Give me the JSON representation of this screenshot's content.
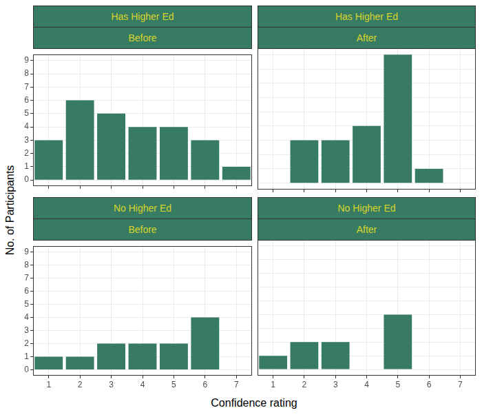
{
  "chart_data": {
    "type": "bar",
    "xlabel": "Confidence rating",
    "ylabel": "No. of Participants",
    "color": "#387b63",
    "grid": true,
    "categories": [
      1,
      2,
      3,
      4,
      5,
      6,
      7
    ],
    "ylim": [
      -0.45,
      9.45
    ],
    "yticks": [
      0,
      1,
      2,
      3,
      4,
      5,
      6,
      7,
      8,
      9
    ],
    "panels": [
      {
        "strip": [
          "Has Higher Ed",
          "Before"
        ],
        "values": [
          3,
          6,
          5,
          4,
          4,
          3,
          1
        ]
      },
      {
        "strip": [
          "Has Higher Ed",
          "After"
        ],
        "values": [
          0,
          3,
          3,
          4,
          9,
          1,
          0
        ]
      },
      {
        "strip": [
          "No Higher Ed",
          "Before"
        ],
        "values": [
          1,
          1,
          2,
          2,
          2,
          4,
          0
        ]
      },
      {
        "strip": [
          "No Higher Ed",
          "After"
        ],
        "values": [
          1,
          2,
          2,
          0,
          4,
          0,
          0
        ]
      }
    ]
  }
}
